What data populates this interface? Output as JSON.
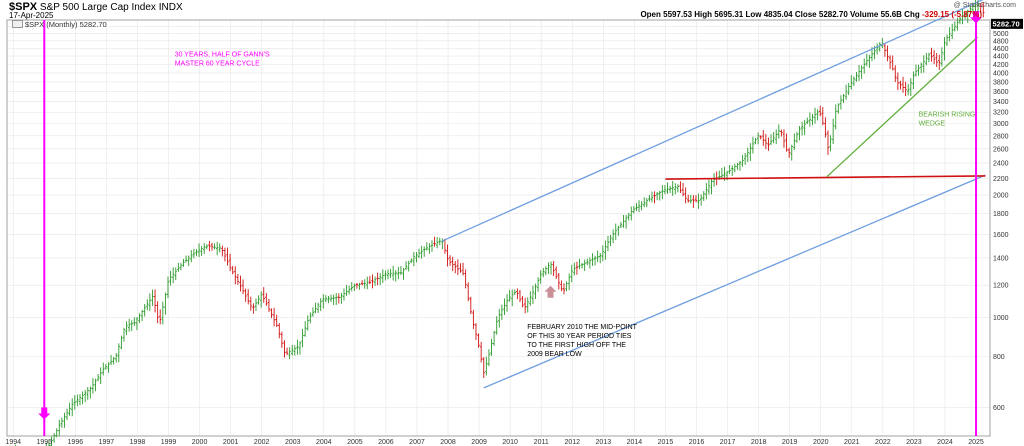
{
  "header": {
    "symbol": "$SPX",
    "name": "S&P 500 Large Cap Index",
    "exchange": "INDX",
    "date": "17-Apr-2025",
    "credit": "@ StockCharts.com",
    "legend": "$SPX (Monthly) 5282.70",
    "ohlc": {
      "open_label": "Open",
      "open": "5597.53",
      "high_label": "High",
      "high": "5695.31",
      "low_label": "Low",
      "low": "4835.04",
      "close_label": "Close",
      "close": "5282.70",
      "volume_label": "Volume",
      "volume": "55.6B",
      "chg_label": "Chg",
      "chg": "-329.15 (-5.87%)"
    }
  },
  "colors": {
    "up_bar": "#2a9a2a",
    "down_bar": "#d01010",
    "blue_line": "#6f9fe0",
    "green_line": "#5fae3a",
    "red_line": "#d01010",
    "magenta": "#ff00ff",
    "pink_arrow": "#c9909a",
    "grid": "#e6e6e6"
  },
  "chart_data": {
    "type": "ohlc",
    "scale": "log",
    "ylim": [
      510,
      5400
    ],
    "xlim": [
      1993.8,
      2025.45
    ],
    "y_ticks": [
      600,
      800,
      1000,
      1200,
      1400,
      1600,
      1800,
      2000,
      2200,
      2400,
      2600,
      2800,
      3000,
      3200,
      3400,
      3600,
      3800,
      4000,
      4200,
      4400,
      4600,
      4800,
      5000,
      5200
    ],
    "x_ticks": [
      "1994",
      "1995",
      "1996",
      "1997",
      "1998",
      "1999",
      "2000",
      "2001",
      "2002",
      "2003",
      "2004",
      "2005",
      "2006",
      "2007",
      "2008",
      "2009",
      "2010",
      "2011",
      "2012",
      "2013",
      "2014",
      "2015",
      "2016",
      "2017",
      "2018",
      "2019",
      "2020",
      "2021",
      "2022",
      "2023",
      "2024",
      "2025"
    ],
    "last_price_label": "5282.70",
    "path_points": [
      [
        1994.0,
        470
      ],
      [
        1994.4,
        455
      ],
      [
        1994.9,
        460
      ],
      [
        1995.1,
        475
      ],
      [
        1995.5,
        545
      ],
      [
        1995.9,
        610
      ],
      [
        1996.5,
        670
      ],
      [
        1996.9,
        745
      ],
      [
        1997.3,
        800
      ],
      [
        1997.6,
        950
      ],
      [
        1997.9,
        970
      ],
      [
        1998.5,
        1130
      ],
      [
        1998.7,
        960
      ],
      [
        1999.0,
        1240
      ],
      [
        1999.5,
        1370
      ],
      [
        1999.9,
        1450
      ],
      [
        2000.2,
        1500
      ],
      [
        2000.7,
        1480
      ],
      [
        2001.0,
        1320
      ],
      [
        2001.3,
        1200
      ],
      [
        2001.7,
        1050
      ],
      [
        2002.0,
        1140
      ],
      [
        2002.5,
        950
      ],
      [
        2002.75,
        810
      ],
      [
        2003.2,
        850
      ],
      [
        2003.5,
        990
      ],
      [
        2003.95,
        1110
      ],
      [
        2004.5,
        1120
      ],
      [
        2005.0,
        1200
      ],
      [
        2005.5,
        1220
      ],
      [
        2006.0,
        1280
      ],
      [
        2006.5,
        1290
      ],
      [
        2006.9,
        1410
      ],
      [
        2007.3,
        1480
      ],
      [
        2007.8,
        1550
      ],
      [
        2008.0,
        1380
      ],
      [
        2008.5,
        1280
      ],
      [
        2008.8,
        970
      ],
      [
        2008.95,
        880
      ],
      [
        2009.15,
        730
      ],
      [
        2009.3,
        800
      ],
      [
        2009.6,
        1000
      ],
      [
        2009.95,
        1115
      ],
      [
        2010.2,
        1160
      ],
      [
        2010.45,
        1050
      ],
      [
        2010.7,
        1140
      ],
      [
        2011.0,
        1280
      ],
      [
        2011.3,
        1360
      ],
      [
        2011.7,
        1150
      ],
      [
        2012.0,
        1310
      ],
      [
        2012.4,
        1360
      ],
      [
        2012.9,
        1420
      ],
      [
        2013.3,
        1600
      ],
      [
        2013.95,
        1840
      ],
      [
        2014.5,
        1960
      ],
      [
        2014.95,
        2060
      ],
      [
        2015.4,
        2100
      ],
      [
        2015.7,
        1940
      ],
      [
        2016.1,
        1940
      ],
      [
        2016.5,
        2170
      ],
      [
        2017.0,
        2280
      ],
      [
        2017.5,
        2440
      ],
      [
        2018.0,
        2820
      ],
      [
        2018.3,
        2650
      ],
      [
        2018.7,
        2910
      ],
      [
        2018.95,
        2510
      ],
      [
        2019.3,
        2900
      ],
      [
        2019.95,
        3230
      ],
      [
        2020.1,
        2950
      ],
      [
        2020.25,
        2580
      ],
      [
        2020.5,
        3270
      ],
      [
        2020.95,
        3760
      ],
      [
        2021.5,
        4300
      ],
      [
        2021.95,
        4760
      ],
      [
        2022.3,
        4130
      ],
      [
        2022.45,
        3800
      ],
      [
        2022.8,
        3600
      ],
      [
        2023.0,
        3970
      ],
      [
        2023.5,
        4450
      ],
      [
        2023.8,
        4200
      ],
      [
        2024.0,
        4800
      ],
      [
        2024.5,
        5460
      ],
      [
        2024.95,
        5880
      ],
      [
        2025.1,
        5950
      ],
      [
        2025.25,
        5600
      ],
      [
        2025.3,
        5283
      ]
    ],
    "lines": [
      {
        "name": "upper channel",
        "color": "blue",
        "from": [
          2007.8,
          1540
        ],
        "to": [
          2025.3,
          6100
        ]
      },
      {
        "name": "lower channel",
        "color": "blue",
        "from": [
          2009.15,
          670
        ],
        "to": [
          2025.3,
          2240
        ]
      },
      {
        "name": "support",
        "color": "red",
        "from": [
          2015.0,
          2190
        ],
        "to": [
          2025.3,
          2230
        ]
      },
      {
        "name": "wedge support",
        "color": "green",
        "from": [
          2020.2,
          2220
        ],
        "to": [
          2025.05,
          4900
        ]
      }
    ],
    "markers": [
      {
        "type": "vertical",
        "color": "magenta",
        "x": 1995.0
      },
      {
        "type": "vertical",
        "color": "magenta",
        "x": 2025.0
      },
      {
        "type": "arrow-down",
        "color": "magenta",
        "x": 1995.0,
        "y": 560
      },
      {
        "type": "arrow-down",
        "color": "magenta",
        "x": 2025.0,
        "y": 5300
      },
      {
        "type": "arrow-up",
        "color": "pink",
        "x": 2011.3,
        "y": 1130
      }
    ],
    "annotations": [
      {
        "id": "gann",
        "color": "magenta",
        "x": 1999.2,
        "y": 4390,
        "lines": [
          "30 YEARS, HALF OF GANN'S",
          "MASTER 60 YEAR CYCLE"
        ]
      },
      {
        "id": "wedge",
        "color": "green",
        "x": 2023.15,
        "y": 3120,
        "lines": [
          "BEARISH RISING",
          "WEDGE"
        ]
      },
      {
        "id": "feb2010",
        "color": "black",
        "x": 2010.55,
        "y": 935,
        "lines": [
          "FEBRUARY 2010 THE MID-POINT",
          "OF THIS 30 YEAR PERIOD TIES",
          "TO THE FIRST HIGH OFF THE",
          "2009 BEAR LOW"
        ]
      }
    ]
  }
}
